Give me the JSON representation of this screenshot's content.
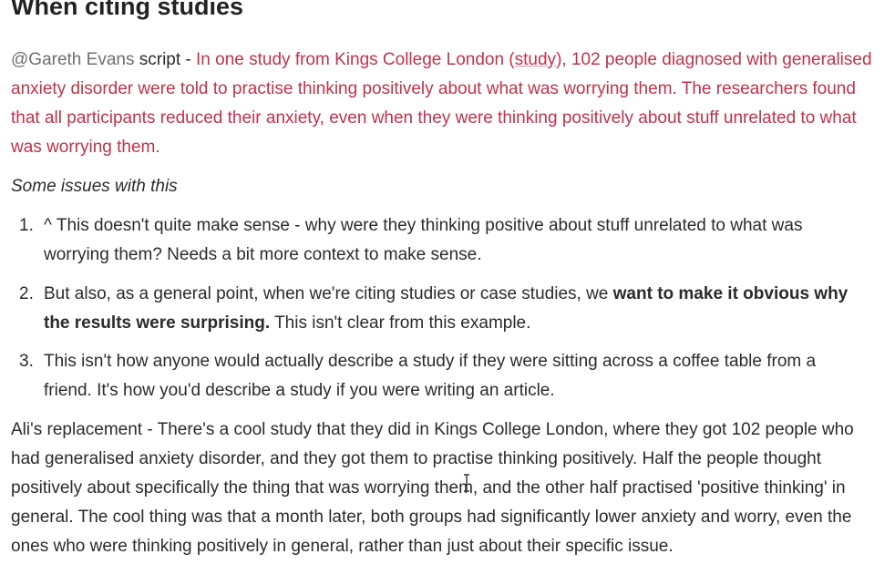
{
  "heading": "When citing studies",
  "script_para": {
    "mention": "@Gareth Evans",
    "label": " script - ",
    "text_before_link": "In one study from Kings College London (",
    "link": "study",
    "text_after_link": "), 102 people diagnosed with generalised anxiety disorder were told to practise thinking positively about what was worrying them. The researchers found that all participants reduced their anxiety, even when they were thinking positively about stuff unrelated to what was worrying them."
  },
  "issues_label": "Some issues with this",
  "issues": [
    {
      "number": "1.",
      "text": "^ This doesn't quite make sense - why were they thinking positive about stuff unrelated to what was worrying them? Needs a bit more context to make sense."
    },
    {
      "number": "2.",
      "text_before_bold": "But also, as a general point, when we're citing studies or case studies, we ",
      "bold": "want to make it obvious why the results were surprising.",
      "text_after_bold": " This isn't clear from this example."
    },
    {
      "number": "3.",
      "text": "This isn't how anyone would actually describe a study if they were sitting across a coffee table from a friend. It's how you'd describe a study if you were writing an article."
    }
  ],
  "replacement_para": "Ali's replacement - There's a cool study that they did in Kings College London, where they got 102 people who had generalised anxiety disorder, and they got them to practise thinking positively. Half the people thought positively about specifically the thing that was worrying them, and the other half practised 'positive thinking' in general. The cool thing was that a month later, both groups had significantly lower anxiety and worry, even the ones who were thinking positively in general, rather than just about their specific issue."
}
